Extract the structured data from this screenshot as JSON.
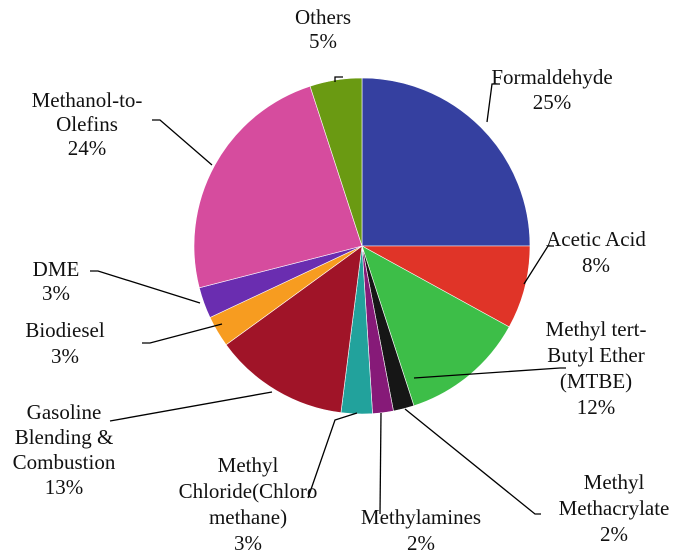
{
  "chart_data": {
    "type": "pie",
    "title": "",
    "slices": [
      {
        "label": [
          "Formaldehyde"
        ],
        "value_label": "25%",
        "value": 25,
        "color": "#3540A0"
      },
      {
        "label": [
          "Acetic Acid"
        ],
        "value_label": "8%",
        "value": 8,
        "color": "#E03428"
      },
      {
        "label": [
          "Methyl tert-",
          "Butyl Ether",
          "(MTBE)"
        ],
        "value_label": "12%",
        "value": 12,
        "color": "#3DBE48"
      },
      {
        "label": [
          "Methyl",
          "Methacrylate"
        ],
        "value_label": "2%",
        "value": 2,
        "color": "#161616"
      },
      {
        "label": [
          "Methylamines"
        ],
        "value_label": "2%",
        "value": 2,
        "color": "#861A78"
      },
      {
        "label": [
          "Methyl",
          "Chloride(Chloro",
          "methane)"
        ],
        "value_label": "3%",
        "value": 3,
        "color": "#22A29C"
      },
      {
        "label": [
          "Gasoline",
          "Blending &",
          "Combustion"
        ],
        "value_label": "13%",
        "value": 13,
        "color": "#A01428"
      },
      {
        "label": [
          "Biodiesel"
        ],
        "value_label": "3%",
        "value": 3,
        "color": "#F79C20"
      },
      {
        "label": [
          "DME"
        ],
        "value_label": "3%",
        "value": 3,
        "color": "#6A2DB0"
      },
      {
        "label": [
          "Methanol-to-",
          "Olefins"
        ],
        "value_label": "24%",
        "value": 24,
        "color": "#D64C9E"
      },
      {
        "label": [
          "Others"
        ],
        "value_label": "5%",
        "value": 5,
        "color": "#6A9A12"
      }
    ]
  }
}
